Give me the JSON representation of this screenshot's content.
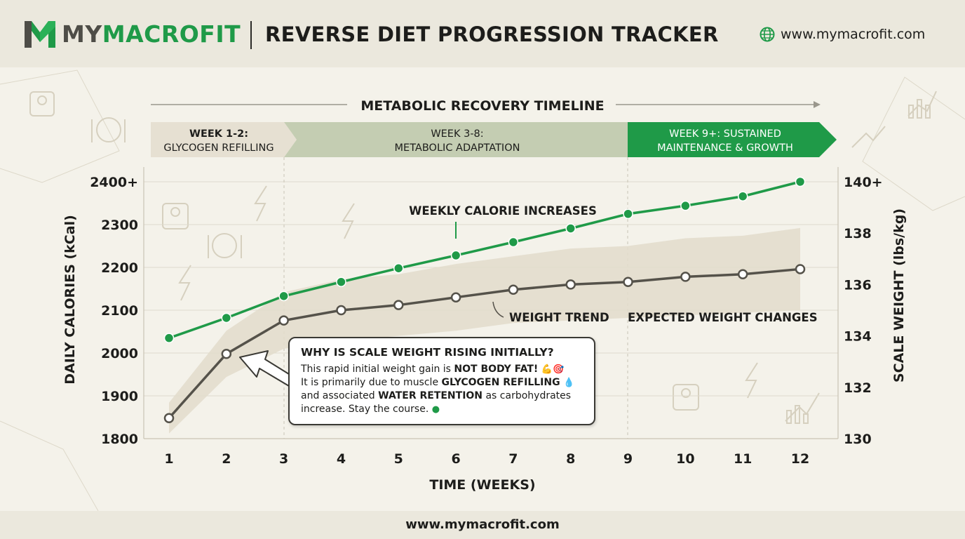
{
  "header": {
    "brand_part1": "MY",
    "brand_part2": "MACROFIT",
    "title": "REVERSE DIET PROGRESSION TRACKER",
    "url": "www.mymacrofit.com"
  },
  "footer": {
    "url": "www.mymacrofit.com"
  },
  "timeline": {
    "title": "METABOLIC RECOVERY TIMELINE",
    "phases": [
      {
        "line1": "WEEK 1-2:",
        "line2": "GLYCOGEN REFILLING"
      },
      {
        "line1": "WEEK 3-8:",
        "line2": "METABOLIC ADAPTATION"
      },
      {
        "line1": "WEEK 9+: SUSTAINED",
        "line2": "MAINTENANCE & GROWTH"
      }
    ]
  },
  "annotations": {
    "calories": "WEEKLY CALORIE INCREASES",
    "weight": "WEIGHT TREND",
    "band": "EXPECTED WEIGHT CHANGES"
  },
  "callout": {
    "title": "WHY IS SCALE WEIGHT RISING INITIALLY?",
    "l1a": "This rapid initial weight gain is ",
    "l1b": "NOT BODY FAT!",
    "l2a": "It is primarily due to muscle ",
    "l2b": "GLYCOGEN REFILLING",
    "l3a": "and associated ",
    "l3b": "WATER RETENTION",
    "l3c": " as carbohydrates",
    "l4": "increase. Stay the course."
  },
  "colors": {
    "calorie_line": "#1f9a48",
    "weight_line": "#55524a",
    "band": "#e2dccb",
    "phase1": "#e6e0d2",
    "phase2": "#c4cdb2",
    "phase3": "#1f9a48"
  },
  "chart_data": {
    "type": "line",
    "x": [
      1,
      2,
      3,
      4,
      5,
      6,
      7,
      8,
      9,
      10,
      11,
      12
    ],
    "xlabel": "TIME (WEEKS)",
    "ylabel": "DAILY CALORIES (kCal)",
    "y2label": "SCALE WEIGHT (lbs/kg)",
    "ylim": [
      1800,
      2400
    ],
    "y2lim": [
      130,
      140
    ],
    "yticks": [
      "1800",
      "1900",
      "2000",
      "2100",
      "2200",
      "2300",
      "2400+"
    ],
    "y2ticks": [
      "130",
      "132",
      "134",
      "136",
      "138",
      "140+"
    ],
    "grid": true,
    "series": [
      {
        "axis": "left",
        "values": [
          2035,
          2082,
          2133,
          2166,
          2198,
          2228,
          2259,
          2291,
          2325,
          2344,
          2366,
          2400
        ]
      },
      {
        "axis": "right",
        "values": [
          130.8,
          133.3,
          134.6,
          135.0,
          135.2,
          135.5,
          135.8,
          136.0,
          136.1,
          136.3,
          136.4,
          136.6
        ]
      }
    ],
    "band": {
      "axis": "right",
      "lower_offset": [
        0.6,
        0.9,
        1.1,
        1.2,
        1.2,
        1.3,
        1.3,
        1.4,
        1.4,
        1.5,
        1.5,
        1.6
      ],
      "upper_offset": [
        0.6,
        0.9,
        1.1,
        1.2,
        1.2,
        1.3,
        1.3,
        1.4,
        1.4,
        1.5,
        1.5,
        1.6
      ]
    }
  }
}
